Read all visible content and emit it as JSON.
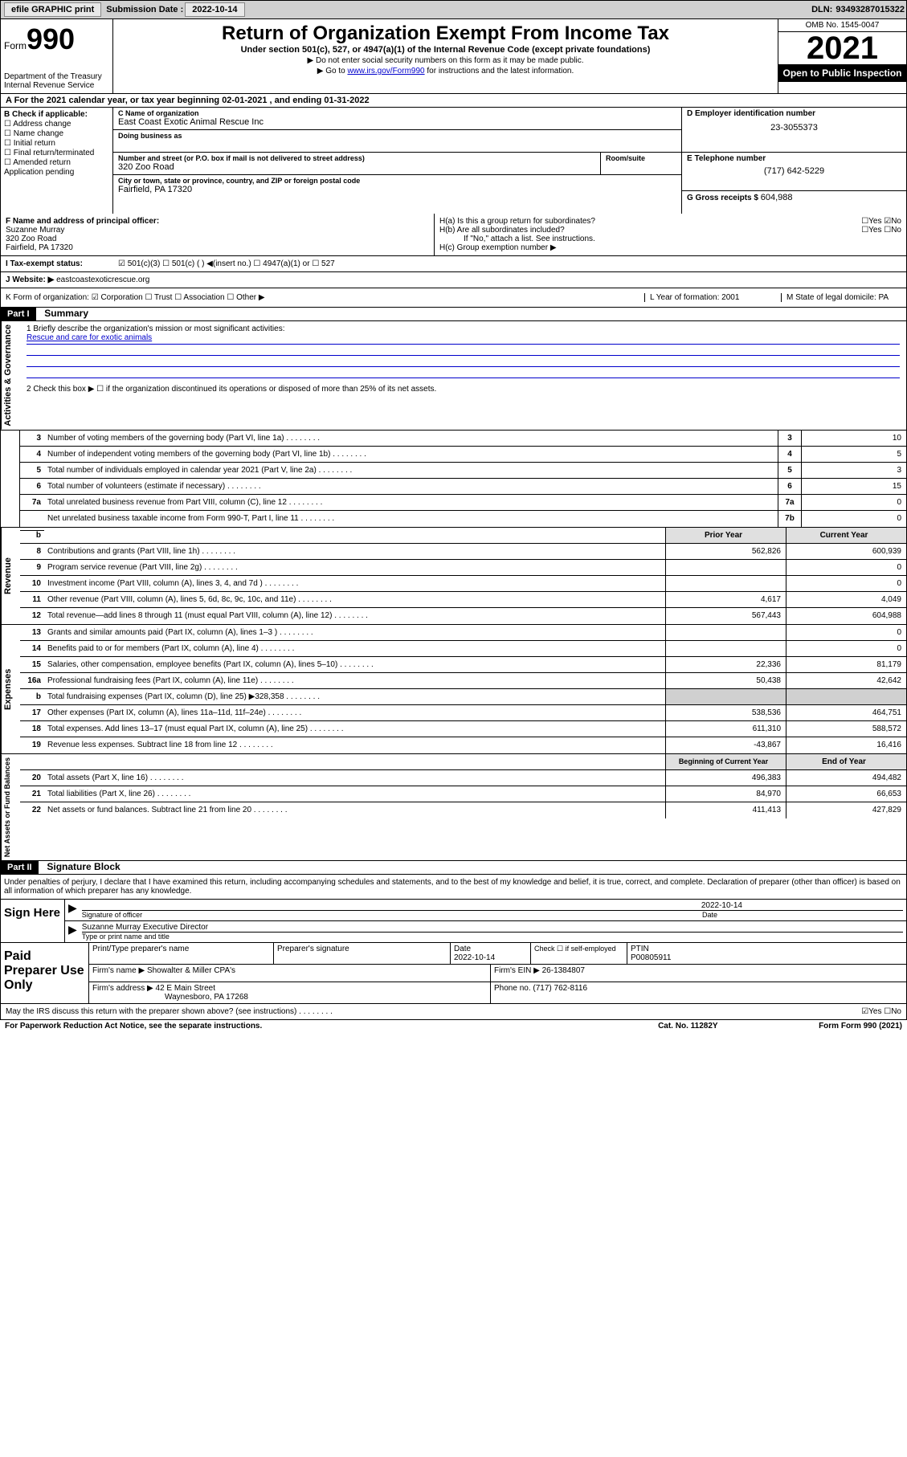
{
  "top": {
    "efile": "efile GRAPHIC print",
    "sub_label": "Submission Date :",
    "sub_date": "2022-10-14",
    "dln_label": "DLN:",
    "dln": "93493287015322"
  },
  "header": {
    "form_word": "Form",
    "form_num": "990",
    "dept": "Department of the Treasury Internal Revenue Service",
    "title": "Return of Organization Exempt From Income Tax",
    "subtitle": "Under section 501(c), 527, or 4947(a)(1) of the Internal Revenue Code (except private foundations)",
    "note1": "▶ Do not enter social security numbers on this form as it may be made public.",
    "note2_pre": "▶ Go to ",
    "note2_link": "www.irs.gov/Form990",
    "note2_post": " for instructions and the latest information.",
    "omb": "OMB No. 1545-0047",
    "year": "2021",
    "open": "Open to Public Inspection"
  },
  "rowA": "A For the 2021 calendar year, or tax year beginning 02-01-2021   , and ending 01-31-2022",
  "colB": {
    "heading": "B Check if applicable:",
    "items": [
      "☐ Address change",
      "☐ Name change",
      "☐ Initial return",
      "☐ Final return/terminated",
      "☐ Amended return",
      "  Application pending"
    ]
  },
  "colC": {
    "name_lbl": "C Name of organization",
    "name": "East Coast Exotic Animal Rescue Inc",
    "dba_lbl": "Doing business as",
    "dba": "",
    "street_lbl": "Number and street (or P.O. box if mail is not delivered to street address)",
    "street": "320 Zoo Road",
    "room_lbl": "Room/suite",
    "city_lbl": "City or town, state or province, country, and ZIP or foreign postal code",
    "city": "Fairfield, PA  17320"
  },
  "colD": {
    "ein_lbl": "D Employer identification number",
    "ein": "23-3055373",
    "tel_lbl": "E Telephone number",
    "tel": "(717) 642-5229",
    "gross_lbl": "G Gross receipts $",
    "gross": "604,988"
  },
  "rowF": {
    "lbl": "F Name and address of principal officer:",
    "name": "Suzanne Murray",
    "addr1": "320 Zoo Road",
    "addr2": "Fairfield, PA  17320"
  },
  "rowH": {
    "ha": "H(a)  Is this a group return for subordinates?",
    "ha_ans": "☐Yes ☑No",
    "hb": "H(b)  Are all subordinates included?",
    "hb_ans": "☐Yes ☐No",
    "hb_note": "If \"No,\" attach a list. See instructions.",
    "hc": "H(c)  Group exemption number ▶"
  },
  "rowI": {
    "lbl": "I   Tax-exempt status:",
    "opts": "☑ 501(c)(3)    ☐  501(c) (  ) ◀(insert no.)    ☐ 4947(a)(1) or   ☐ 527"
  },
  "rowJ": {
    "lbl": "J   Website: ▶",
    "val": "eastcoastexoticrescue.org"
  },
  "rowK": {
    "lbl": "K Form of organization:  ☑ Corporation  ☐ Trust  ☐ Association  ☐ Other ▶",
    "l": "L Year of formation: 2001",
    "m": "M State of legal domicile: PA"
  },
  "part1": {
    "label": "Part I",
    "title": "Summary",
    "line1_lbl": "1   Briefly describe the organization's mission or most significant activities:",
    "line1_val": "Rescue and care for exotic animals",
    "line2": "2   Check this box ▶ ☐  if the organization discontinued its operations or disposed of more than 25% of its net assets.",
    "vert_gov": "Activities & Governance",
    "vert_rev": "Revenue",
    "vert_exp": "Expenses",
    "vert_net": "Net Assets or Fund Balances",
    "gov_lines": [
      {
        "n": "3",
        "d": "Number of voting members of the governing body (Part VI, line 1a)",
        "box": "3",
        "v": "10"
      },
      {
        "n": "4",
        "d": "Number of independent voting members of the governing body (Part VI, line 1b)",
        "box": "4",
        "v": "5"
      },
      {
        "n": "5",
        "d": "Total number of individuals employed in calendar year 2021 (Part V, line 2a)",
        "box": "5",
        "v": "3"
      },
      {
        "n": "6",
        "d": "Total number of volunteers (estimate if necessary)",
        "box": "6",
        "v": "15"
      },
      {
        "n": "7a",
        "d": "Total unrelated business revenue from Part VIII, column (C), line 12",
        "box": "7a",
        "v": "0"
      },
      {
        "n": "",
        "d": "Net unrelated business taxable income from Form 990-T, Part I, line 11",
        "box": "7b",
        "v": "0"
      }
    ],
    "prior_hdr": "Prior Year",
    "current_hdr": "Current Year",
    "begin_hdr": "Beginning of Current Year",
    "end_hdr": "End of Year",
    "rev_lines": [
      {
        "n": "8",
        "d": "Contributions and grants (Part VIII, line 1h)",
        "p": "562,826",
        "c": "600,939"
      },
      {
        "n": "9",
        "d": "Program service revenue (Part VIII, line 2g)",
        "p": "",
        "c": "0"
      },
      {
        "n": "10",
        "d": "Investment income (Part VIII, column (A), lines 3, 4, and 7d )",
        "p": "",
        "c": "0"
      },
      {
        "n": "11",
        "d": "Other revenue (Part VIII, column (A), lines 5, 6d, 8c, 9c, 10c, and 11e)",
        "p": "4,617",
        "c": "4,049"
      },
      {
        "n": "12",
        "d": "Total revenue—add lines 8 through 11 (must equal Part VIII, column (A), line 12)",
        "p": "567,443",
        "c": "604,988"
      }
    ],
    "exp_lines": [
      {
        "n": "13",
        "d": "Grants and similar amounts paid (Part IX, column (A), lines 1–3 )",
        "p": "",
        "c": "0"
      },
      {
        "n": "14",
        "d": "Benefits paid to or for members (Part IX, column (A), line 4)",
        "p": "",
        "c": "0"
      },
      {
        "n": "15",
        "d": "Salaries, other compensation, employee benefits (Part IX, column (A), lines 5–10)",
        "p": "22,336",
        "c": "81,179"
      },
      {
        "n": "16a",
        "d": "Professional fundraising fees (Part IX, column (A), line 11e)",
        "p": "50,438",
        "c": "42,642"
      },
      {
        "n": "b",
        "d": "Total fundraising expenses (Part IX, column (D), line 25) ▶328,358",
        "p": "shaded",
        "c": "shaded"
      },
      {
        "n": "17",
        "d": "Other expenses (Part IX, column (A), lines 11a–11d, 11f–24e)",
        "p": "538,536",
        "c": "464,751"
      },
      {
        "n": "18",
        "d": "Total expenses. Add lines 13–17 (must equal Part IX, column (A), line 25)",
        "p": "611,310",
        "c": "588,572"
      },
      {
        "n": "19",
        "d": "Revenue less expenses. Subtract line 18 from line 12",
        "p": "-43,867",
        "c": "16,416"
      }
    ],
    "net_lines": [
      {
        "n": "20",
        "d": "Total assets (Part X, line 16)",
        "p": "496,383",
        "c": "494,482"
      },
      {
        "n": "21",
        "d": "Total liabilities (Part X, line 26)",
        "p": "84,970",
        "c": "66,653"
      },
      {
        "n": "22",
        "d": "Net assets or fund balances. Subtract line 21 from line 20",
        "p": "411,413",
        "c": "427,829"
      }
    ]
  },
  "part2": {
    "label": "Part II",
    "title": "Signature Block",
    "decl": "Under penalties of perjury, I declare that I have examined this return, including accompanying schedules and statements, and to the best of my knowledge and belief, it is true, correct, and complete. Declaration of preparer (other than officer) is based on all information of which preparer has any knowledge.",
    "sign_here": "Sign Here",
    "sig_officer": "Signature of officer",
    "sig_date": "2022-10-14",
    "date_lbl": "Date",
    "officer_name": "Suzanne Murray  Executive Director",
    "type_name": "Type or print name and title",
    "paid_label": "Paid Preparer Use Only",
    "prep_name_lbl": "Print/Type preparer's name",
    "prep_sig_lbl": "Preparer's signature",
    "prep_date_lbl": "Date",
    "prep_date": "2022-10-14",
    "check_self": "Check ☐ if self-employed",
    "ptin_lbl": "PTIN",
    "ptin": "P00805911",
    "firm_name_lbl": "Firm's name    ▶",
    "firm_name": "Showalter & Miller CPA's",
    "firm_ein_lbl": "Firm's EIN ▶",
    "firm_ein": "26-1384807",
    "firm_addr_lbl": "Firm's address ▶",
    "firm_addr1": "42 E Main Street",
    "firm_addr2": "Waynesboro, PA  17268",
    "phone_lbl": "Phone no.",
    "phone": "(717) 762-8116",
    "may_irs": "May the IRS discuss this return with the preparer shown above? (see instructions)",
    "may_ans": "☑Yes  ☐No"
  },
  "footer": {
    "pra": "For Paperwork Reduction Act Notice, see the separate instructions.",
    "cat": "Cat. No. 11282Y",
    "form": "Form 990 (2021)"
  }
}
